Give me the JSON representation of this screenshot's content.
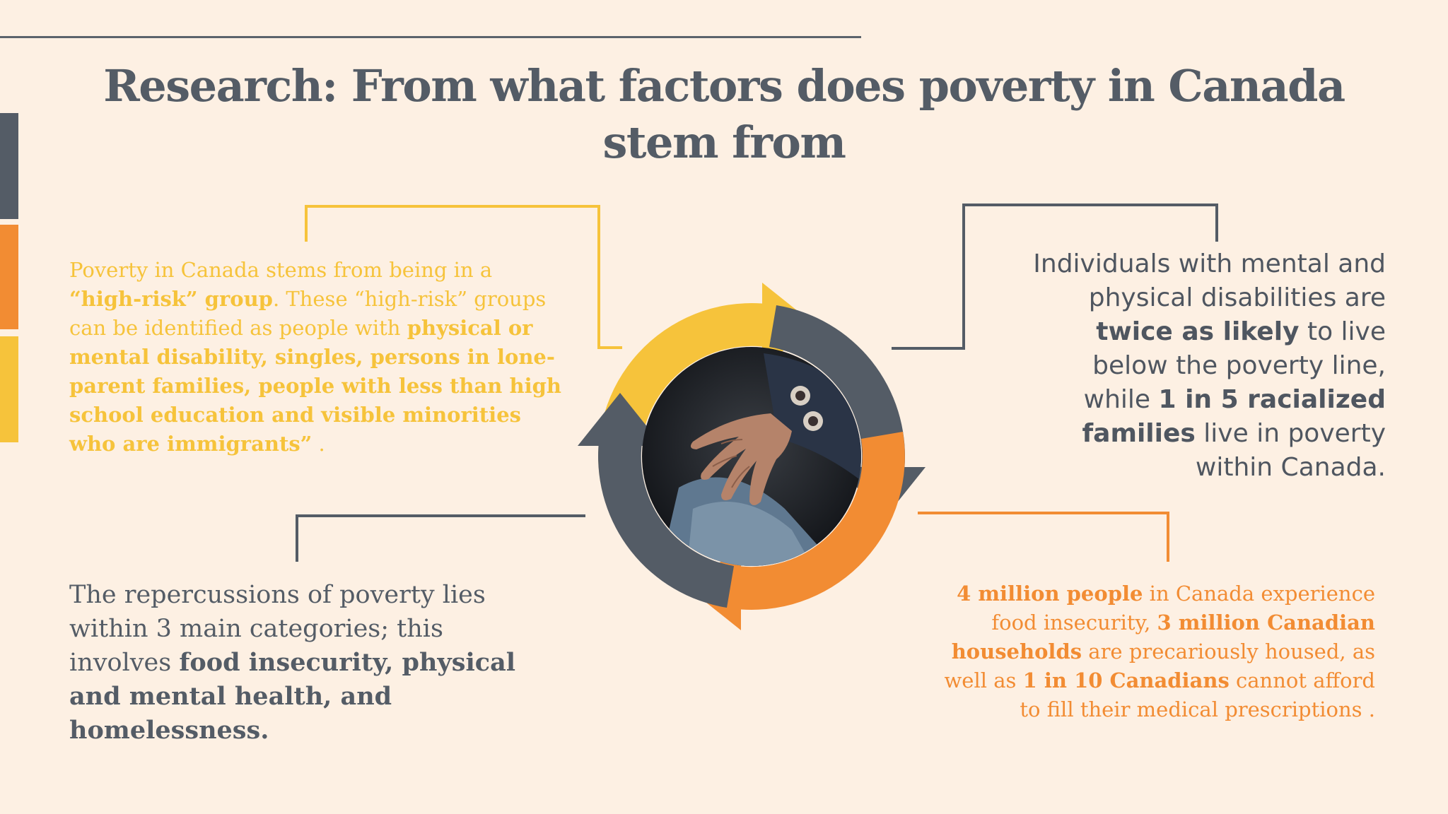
{
  "title": "Research: From what factors does poverty in Canada stem from",
  "colors": {
    "background": "#fdf0e3",
    "yellow": "#f6c33b",
    "orange": "#f28c33",
    "slate": "#545c66"
  },
  "side_bars": [
    {
      "color": "#545c66"
    },
    {
      "color": "#f28c33"
    },
    {
      "color": "#f6c33b"
    }
  ],
  "center_image": {
    "icon": "photo-elderly-hand-icon"
  },
  "blocks": {
    "top_left": {
      "p1": "Poverty in Canada stems from being in a ",
      "b1": "“high-risk” group",
      "p2": ". These “high-risk” groups can be identified as people with ",
      "b2": "physical or mental disability, singles, persons in lone-parent families, people with less than high school education and visible minorities who are immigrants”",
      "p3": " ."
    },
    "top_right": {
      "p1": "Individuals with mental and physical disabilities are ",
      "b1": "twice as likely",
      "p2": " to live below the poverty line, while ",
      "b2": "1 in 5 racialized families",
      "p3": " live in poverty within Canada."
    },
    "bottom_left": {
      "p1": "The repercussions of poverty lies within 3 main categories; this involves ",
      "b1": "food insecurity, physical and mental health, and homelessness."
    },
    "bottom_right": {
      "b1": "4 million people",
      "p1": " in Canada experience food insecurity, ",
      "b2": "3 million Canadian households",
      "p2": " are precariously housed, as well as ",
      "b3": "1 in 10 Canadians",
      "p3": " cannot afford to fill their medical prescriptions ."
    }
  }
}
